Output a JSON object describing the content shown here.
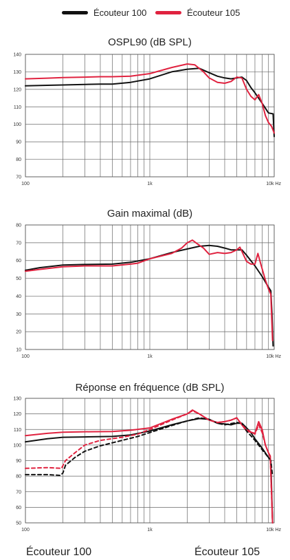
{
  "legend": [
    {
      "label": "Écouteur 100",
      "color": "#111111"
    },
    {
      "label": "Écouteur 105",
      "color": "#e0223f"
    }
  ],
  "bottom_labels": {
    "left": "Écouteur 100",
    "right": "Écouteur 105"
  },
  "chart_data": [
    {
      "type": "line",
      "title": "OSPL90 (dB SPL)",
      "xscale": "log",
      "xlim": [
        100,
        10000
      ],
      "ylim": [
        70,
        140
      ],
      "yticks": [
        70,
        80,
        90,
        100,
        110,
        120,
        130,
        140
      ],
      "xtick_labels": [
        "100",
        "1k",
        "10k Hz"
      ],
      "grid": true,
      "series": [
        {
          "name": "Écouteur 100",
          "color": "#111111",
          "dashed": false,
          "points": [
            [
              100,
              122
            ],
            [
              150,
              122.3
            ],
            [
              200,
              122.5
            ],
            [
              300,
              122.8
            ],
            [
              400,
              123
            ],
            [
              500,
              123
            ],
            [
              700,
              124
            ],
            [
              1000,
              126
            ],
            [
              1500,
              130
            ],
            [
              2000,
              131.5
            ],
            [
              2500,
              132
            ],
            [
              3000,
              129.5
            ],
            [
              3500,
              127.5
            ],
            [
              4000,
              126.5
            ],
            [
              4500,
              126
            ],
            [
              5000,
              126.5
            ],
            [
              5500,
              127
            ],
            [
              6000,
              125
            ],
            [
              6500,
              121
            ],
            [
              7000,
              118
            ],
            [
              8000,
              112
            ],
            [
              9000,
              106.5
            ],
            [
              9800,
              106
            ],
            [
              10000,
              93
            ]
          ]
        },
        {
          "name": "Écouteur 105",
          "color": "#e0223f",
          "dashed": false,
          "points": [
            [
              100,
              126
            ],
            [
              150,
              126.4
            ],
            [
              200,
              126.7
            ],
            [
              300,
              127
            ],
            [
              400,
              127.2
            ],
            [
              500,
              127.2
            ],
            [
              700,
              127.5
            ],
            [
              1000,
              129
            ],
            [
              1500,
              132.5
            ],
            [
              2000,
              134.5
            ],
            [
              2300,
              134
            ],
            [
              2700,
              130
            ],
            [
              3000,
              126.5
            ],
            [
              3500,
              124
            ],
            [
              4000,
              123.5
            ],
            [
              4500,
              124.5
            ],
            [
              5000,
              127
            ],
            [
              5500,
              126.5
            ],
            [
              6000,
              120
            ],
            [
              6500,
              116
            ],
            [
              7000,
              114
            ],
            [
              7500,
              117
            ],
            [
              8000,
              112
            ],
            [
              8500,
              105
            ],
            [
              9000,
              101
            ],
            [
              9500,
              99
            ],
            [
              10000,
              95
            ]
          ]
        }
      ]
    },
    {
      "type": "line",
      "title": "Gain maximal (dB)",
      "xscale": "log",
      "xlim": [
        100,
        10000
      ],
      "ylim": [
        10,
        80
      ],
      "yticks": [
        10,
        20,
        30,
        40,
        50,
        60,
        70,
        80
      ],
      "xtick_labels": [
        "100",
        "1k",
        "10k Hz"
      ],
      "grid": true,
      "series": [
        {
          "name": "Écouteur 100",
          "color": "#111111",
          "dashed": false,
          "points": [
            [
              100,
              54.5
            ],
            [
              130,
              56
            ],
            [
              200,
              57.5
            ],
            [
              300,
              57.8
            ],
            [
              500,
              58
            ],
            [
              700,
              59
            ],
            [
              1000,
              61
            ],
            [
              1500,
              64.5
            ],
            [
              2000,
              66.5
            ],
            [
              2500,
              68
            ],
            [
              3000,
              68.5
            ],
            [
              3500,
              68
            ],
            [
              4000,
              67
            ],
            [
              4500,
              66
            ],
            [
              5000,
              66
            ],
            [
              5500,
              66
            ],
            [
              6000,
              63
            ],
            [
              7000,
              57
            ],
            [
              8000,
              51
            ],
            [
              9000,
              45
            ],
            [
              9400,
              43
            ],
            [
              9600,
              30
            ],
            [
              9800,
              12
            ]
          ]
        },
        {
          "name": "Écouteur 105",
          "color": "#e0223f",
          "dashed": false,
          "points": [
            [
              100,
              54
            ],
            [
              130,
              55
            ],
            [
              200,
              56.5
            ],
            [
              300,
              57
            ],
            [
              500,
              57
            ],
            [
              700,
              58
            ],
            [
              800,
              58.5
            ],
            [
              1000,
              61
            ],
            [
              1500,
              64
            ],
            [
              1800,
              67
            ],
            [
              2000,
              70
            ],
            [
              2200,
              71.5
            ],
            [
              2400,
              69.5
            ],
            [
              2700,
              67
            ],
            [
              3000,
              63.5
            ],
            [
              3500,
              64.5
            ],
            [
              4000,
              64
            ],
            [
              4500,
              64.5
            ],
            [
              5000,
              66
            ],
            [
              5300,
              67.5
            ],
            [
              5600,
              64
            ],
            [
              6000,
              59.5
            ],
            [
              6500,
              58
            ],
            [
              7000,
              58
            ],
            [
              7400,
              64
            ],
            [
              7800,
              58
            ],
            [
              8500,
              49
            ],
            [
              9000,
              44
            ],
            [
              9400,
              41
            ],
            [
              9700,
              15
            ]
          ]
        }
      ]
    },
    {
      "type": "line",
      "title": "Réponse en fréquence (dB SPL)",
      "xscale": "log",
      "xlim": [
        100,
        10000
      ],
      "ylim": [
        50,
        130
      ],
      "yticks": [
        50,
        60,
        70,
        80,
        90,
        100,
        110,
        120,
        130
      ],
      "xtick_labels": [
        "100",
        "1k",
        "10k Hz"
      ],
      "grid": true,
      "series": [
        {
          "name": "Écouteur 100",
          "color": "#111111",
          "dashed": false,
          "points": [
            [
              100,
              102
            ],
            [
              150,
              104
            ],
            [
              200,
              105
            ],
            [
              300,
              105.2
            ],
            [
              500,
              105.5
            ],
            [
              700,
              106.5
            ],
            [
              1000,
              109
            ],
            [
              1500,
              113
            ],
            [
              2000,
              115.5
            ],
            [
              2500,
              117
            ],
            [
              3000,
              116.5
            ],
            [
              3500,
              114
            ],
            [
              4000,
              113.5
            ],
            [
              4500,
              113
            ],
            [
              5000,
              114
            ],
            [
              5500,
              114
            ],
            [
              6000,
              111
            ],
            [
              6500,
              108
            ],
            [
              7000,
              104
            ],
            [
              8000,
              98
            ],
            [
              9000,
              92
            ],
            [
              9400,
              90
            ],
            [
              9700,
              50
            ]
          ]
        },
        {
          "name": "Écouteur 105",
          "color": "#e0223f",
          "dashed": false,
          "points": [
            [
              100,
              106
            ],
            [
              150,
              107.5
            ],
            [
              200,
              108.2
            ],
            [
              300,
              108.5
            ],
            [
              500,
              108.7
            ],
            [
              700,
              109.5
            ],
            [
              1000,
              111
            ],
            [
              1500,
              116.5
            ],
            [
              2000,
              120
            ],
            [
              2200,
              122.5
            ],
            [
              2500,
              120
            ],
            [
              3000,
              116
            ],
            [
              3500,
              114.5
            ],
            [
              4000,
              115
            ],
            [
              4500,
              116
            ],
            [
              5000,
              117.5
            ],
            [
              5500,
              113
            ],
            [
              6000,
              109
            ],
            [
              7000,
              107.5
            ],
            [
              7500,
              115
            ],
            [
              8000,
              110
            ],
            [
              8500,
              100
            ],
            [
              9000,
              95
            ],
            [
              9300,
              93
            ],
            [
              9700,
              50
            ]
          ]
        },
        {
          "name": "Écouteur 100",
          "color": "#111111",
          "dashed": true,
          "points": [
            [
              100,
              81
            ],
            [
              150,
              81
            ],
            [
              190,
              80.5
            ],
            [
              200,
              82
            ],
            [
              210,
              87
            ],
            [
              250,
              92
            ],
            [
              300,
              96
            ],
            [
              400,
              99.5
            ],
            [
              600,
              103
            ],
            [
              800,
              105.5
            ],
            [
              1000,
              108
            ],
            [
              1500,
              112.5
            ],
            [
              2000,
              115.5
            ],
            [
              2500,
              117.5
            ],
            [
              3000,
              116.5
            ],
            [
              3500,
              114
            ],
            [
              4000,
              113
            ],
            [
              5000,
              114.5
            ],
            [
              5500,
              114
            ],
            [
              6000,
              109
            ],
            [
              7000,
              103
            ],
            [
              8000,
              97
            ],
            [
              9000,
              92
            ],
            [
              9400,
              90
            ],
            [
              9700,
              80
            ]
          ]
        },
        {
          "name": "Écouteur 105",
          "color": "#e0223f",
          "dashed": true,
          "points": [
            [
              100,
              85
            ],
            [
              150,
              85.5
            ],
            [
              195,
              85
            ],
            [
              210,
              90
            ],
            [
              250,
              95
            ],
            [
              300,
              100
            ],
            [
              400,
              103
            ],
            [
              600,
              105
            ],
            [
              800,
              107
            ],
            [
              1000,
              110
            ],
            [
              1500,
              116
            ],
            [
              2000,
              120
            ],
            [
              2200,
              122
            ],
            [
              2500,
              120
            ],
            [
              3000,
              116
            ],
            [
              3500,
              114.5
            ],
            [
              4000,
              115
            ],
            [
              4500,
              116
            ],
            [
              5000,
              117.5
            ],
            [
              5500,
              113
            ],
            [
              6000,
              110
            ],
            [
              7000,
              107
            ],
            [
              7500,
              113
            ],
            [
              8000,
              108
            ],
            [
              8500,
              100
            ],
            [
              9000,
              95
            ],
            [
              9300,
              92
            ],
            [
              9700,
              50
            ]
          ]
        }
      ]
    }
  ]
}
